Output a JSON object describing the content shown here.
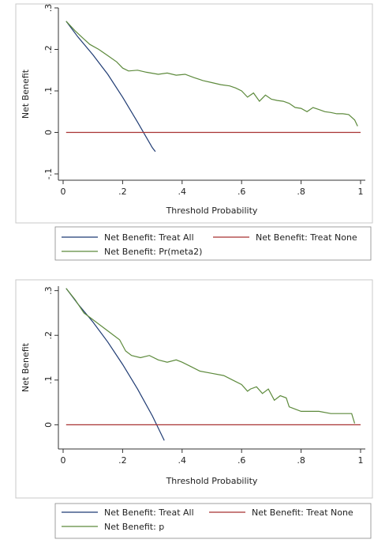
{
  "chart_data": [
    {
      "type": "line",
      "title": "",
      "xlabel": "Threshold Probability",
      "ylabel": "Net Benefit",
      "xlim": [
        0,
        1
      ],
      "ylim": [
        -0.1,
        0.3
      ],
      "x_ticks": [
        0,
        0.2,
        0.4,
        0.6,
        0.8,
        1
      ],
      "x_tick_labels": [
        "0",
        ".2",
        ".4",
        ".6",
        ".8",
        "1"
      ],
      "y_ticks": [
        -0.1,
        0,
        0.1,
        0.2,
        0.3
      ],
      "y_tick_labels": [
        "-.1",
        "0",
        ".1",
        ".2",
        ".3"
      ],
      "grid": false,
      "legend_position": "bottom",
      "series": [
        {
          "name": "Net Benefit: Treat All",
          "color": "#1f3b73",
          "x": [
            0.01,
            0.05,
            0.1,
            0.15,
            0.2,
            0.25,
            0.3,
            0.31
          ],
          "y": [
            0.268,
            0.23,
            0.187,
            0.14,
            0.085,
            0.025,
            -0.037,
            -0.046
          ]
        },
        {
          "name": "Net Benefit: Treat None",
          "color": "#a83232",
          "x": [
            0.01,
            1.0
          ],
          "y": [
            0,
            0
          ]
        },
        {
          "name": "Net Benefit: Pr(meta2)",
          "color": "#5d8a3c",
          "x": [
            0.01,
            0.04,
            0.07,
            0.09,
            0.12,
            0.15,
            0.18,
            0.2,
            0.22,
            0.25,
            0.28,
            0.32,
            0.35,
            0.38,
            0.41,
            0.44,
            0.47,
            0.5,
            0.53,
            0.56,
            0.58,
            0.6,
            0.62,
            0.64,
            0.66,
            0.68,
            0.7,
            0.72,
            0.74,
            0.76,
            0.78,
            0.8,
            0.82,
            0.84,
            0.86,
            0.88,
            0.9,
            0.92,
            0.94,
            0.96,
            0.98,
            0.99
          ],
          "y": [
            0.268,
            0.245,
            0.225,
            0.212,
            0.2,
            0.185,
            0.17,
            0.155,
            0.148,
            0.15,
            0.145,
            0.14,
            0.143,
            0.138,
            0.14,
            0.132,
            0.125,
            0.12,
            0.115,
            0.112,
            0.107,
            0.1,
            0.085,
            0.095,
            0.075,
            0.09,
            0.08,
            0.077,
            0.075,
            0.07,
            0.06,
            0.058,
            0.05,
            0.06,
            0.055,
            0.05,
            0.048,
            0.045,
            0.045,
            0.043,
            0.03,
            0.015
          ]
        }
      ]
    },
    {
      "type": "line",
      "title": "",
      "xlabel": "Threshold Probability",
      "ylabel": "Net Benefit",
      "xlim": [
        0,
        1
      ],
      "ylim": [
        -0.04,
        0.31
      ],
      "x_ticks": [
        0,
        0.2,
        0.4,
        0.6,
        0.8,
        1
      ],
      "x_tick_labels": [
        "0",
        ".2",
        ".4",
        ".6",
        ".8",
        "1"
      ],
      "y_ticks": [
        0,
        0.1,
        0.2,
        0.3
      ],
      "y_tick_labels": [
        "0",
        ".1",
        ".2",
        ".3"
      ],
      "grid": false,
      "legend_position": "bottom",
      "series": [
        {
          "name": "Net Benefit: Treat All",
          "color": "#1f3b73",
          "x": [
            0.01,
            0.05,
            0.1,
            0.15,
            0.2,
            0.25,
            0.3,
            0.34
          ],
          "y": [
            0.305,
            0.27,
            0.23,
            0.185,
            0.135,
            0.08,
            0.02,
            -0.035
          ]
        },
        {
          "name": "Net Benefit: Treat None",
          "color": "#a83232",
          "x": [
            0.01,
            1.0
          ],
          "y": [
            0,
            0
          ]
        },
        {
          "name": "Net Benefit: p",
          "color": "#5d8a3c",
          "x": [
            0.01,
            0.04,
            0.07,
            0.1,
            0.13,
            0.16,
            0.19,
            0.21,
            0.23,
            0.26,
            0.29,
            0.32,
            0.35,
            0.38,
            0.4,
            0.43,
            0.46,
            0.5,
            0.54,
            0.57,
            0.6,
            0.62,
            0.63,
            0.65,
            0.67,
            0.69,
            0.71,
            0.73,
            0.75,
            0.76,
            0.78,
            0.8,
            0.83,
            0.86,
            0.9,
            0.93,
            0.95,
            0.97,
            0.98
          ],
          "y": [
            0.305,
            0.28,
            0.25,
            0.235,
            0.22,
            0.205,
            0.19,
            0.165,
            0.155,
            0.15,
            0.155,
            0.145,
            0.14,
            0.145,
            0.14,
            0.13,
            0.12,
            0.115,
            0.11,
            0.1,
            0.09,
            0.075,
            0.08,
            0.085,
            0.07,
            0.08,
            0.055,
            0.065,
            0.06,
            0.04,
            0.035,
            0.03,
            0.03,
            0.03,
            0.025,
            0.025,
            0.025,
            0.025,
            0.003
          ]
        }
      ]
    }
  ]
}
